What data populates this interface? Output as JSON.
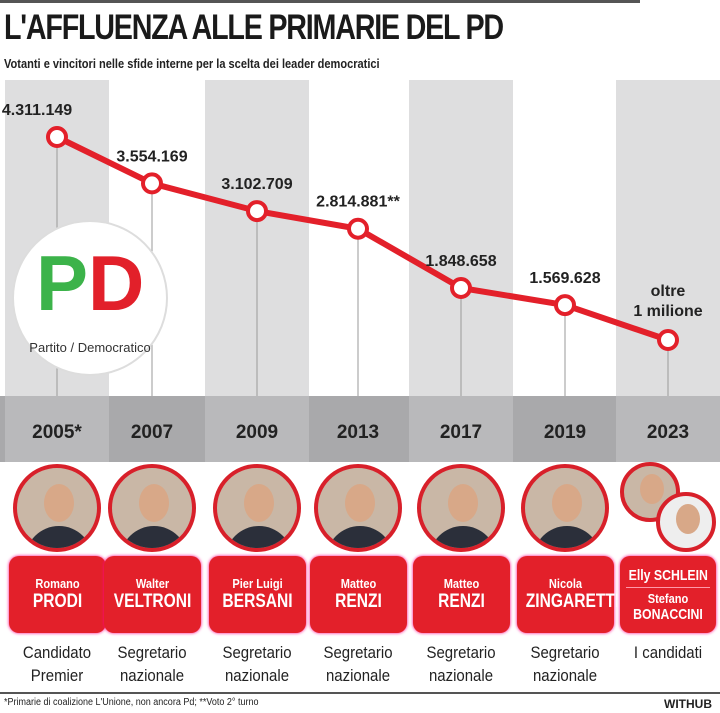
{
  "title": "L'AFFLUENZA ALLE PRIMARIE DEL PD",
  "subtitle": "Votanti e vincitori nelle sfide interne per la scelta dei leader democratici",
  "logo": {
    "name_left": "Partito",
    "name_right": "Democratico",
    "letters": "PD"
  },
  "chart_data": {
    "type": "line",
    "title": "L'AFFLUENZA ALLE PRIMARIE DEL PD",
    "categories": [
      "2005*",
      "2007",
      "2009",
      "2013",
      "2017",
      "2019",
      "2023"
    ],
    "values": [
      4311149,
      3554169,
      3102709,
      2814881,
      1848658,
      1569628,
      1000000
    ],
    "labels": [
      "4.311.149",
      "3.554.169",
      "3.102.709",
      "2.814.881**",
      "1.848.658",
      "1.569.628",
      "oltre|1 milione"
    ],
    "color": "#e3202a",
    "ylim": [
      0,
      4600000
    ]
  },
  "candidates": [
    {
      "first": "Romano",
      "last": "PRODI",
      "role1": "Candidato",
      "role2": "Premier"
    },
    {
      "first": "Walter",
      "last": "VELTRONI",
      "role1": "Segretario",
      "role2": "nazionale"
    },
    {
      "first": "Pier Luigi",
      "last": "BERSANI",
      "role1": "Segretario",
      "role2": "nazionale"
    },
    {
      "first": "Matteo",
      "last": "RENZI",
      "role1": "Segretario",
      "role2": "nazionale"
    },
    {
      "first": "Matteo",
      "last": "RENZI",
      "role1": "Segretario",
      "role2": "nazionale"
    },
    {
      "first": "Nicola",
      "last": "ZINGARETTI",
      "role1": "Segretario",
      "role2": "nazionale"
    }
  ],
  "last_candidates": {
    "a": "Elly SCHLEIN",
    "b_first": "Stefano",
    "b_last": "BONACCINI",
    "role": "I candidati"
  },
  "footnote": "*Primarie di coalizione L'Unione, non ancora Pd; **Voto 2° turno",
  "brand": "WITHUB"
}
